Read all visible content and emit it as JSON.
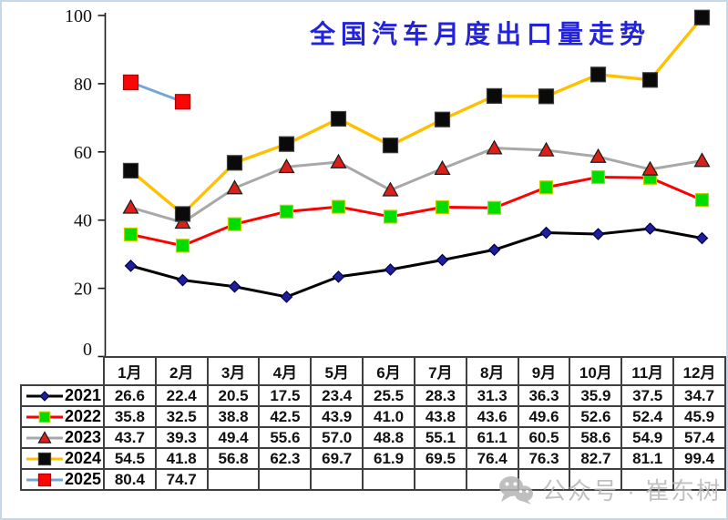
{
  "frame": {
    "border_color": "#c7d7ea",
    "background": "#ffffff"
  },
  "title": {
    "text": "全国汽车月度出口量走势",
    "color": "#2323dc"
  },
  "watermark": {
    "icon": "wechat-icon",
    "text": "公众号 · 崔东树",
    "color": "#b6b6b6"
  },
  "y_axis": {
    "ticks": [
      0,
      20,
      40,
      60,
      80,
      100
    ],
    "color": "#1a1a1a"
  },
  "chart_data": {
    "type": "line",
    "title": "全国汽车月度出口量走势",
    "xlabel": "",
    "ylabel": "",
    "categories": [
      "1月",
      "2月",
      "3月",
      "4月",
      "5月",
      "6月",
      "7月",
      "8月",
      "9月",
      "10月",
      "11月",
      "12月"
    ],
    "ylim": [
      0,
      100
    ],
    "yticks": [
      0,
      20,
      40,
      60,
      80,
      100
    ],
    "grid": false,
    "legend_position": "table-first-column",
    "series": [
      {
        "name": "2021",
        "marker": "diamond",
        "line_color": "#000000",
        "marker_color": "#1f1f99",
        "marker_edge": "#00004d",
        "marker_size": 6,
        "line_width": 3,
        "values": [
          26.6,
          22.4,
          20.5,
          17.5,
          23.4,
          25.5,
          28.3,
          31.3,
          36.3,
          35.9,
          37.5,
          34.7
        ]
      },
      {
        "name": "2022",
        "marker": "square",
        "line_color": "#fe0000",
        "marker_color": "#00dc00",
        "marker_edge": "#bccf00",
        "marker_size": 7,
        "line_width": 3,
        "values": [
          35.8,
          32.5,
          38.8,
          42.5,
          43.9,
          41.0,
          43.8,
          43.6,
          49.6,
          52.6,
          52.4,
          45.9
        ]
      },
      {
        "name": "2023",
        "marker": "triangle",
        "line_color": "#a8a8a8",
        "marker_color": "#db201a",
        "marker_edge": "#1a1a1a",
        "marker_size": 8,
        "line_width": 3,
        "values": [
          43.7,
          39.3,
          49.4,
          55.6,
          57.0,
          48.8,
          55.1,
          61.1,
          60.5,
          58.6,
          54.9,
          57.4
        ]
      },
      {
        "name": "2024",
        "marker": "square",
        "line_color": "#ffc000",
        "marker_color": "#0a0a0a",
        "marker_edge": "#3c3c3c",
        "marker_size": 8,
        "line_width": 3.4,
        "values": [
          54.5,
          41.8,
          56.8,
          62.3,
          69.7,
          61.9,
          69.5,
          76.4,
          76.3,
          82.7,
          81.1,
          99.4
        ]
      },
      {
        "name": "2025",
        "marker": "square",
        "line_color": "#74a6d8",
        "marker_color": "#fb0507",
        "marker_edge": "#b00000",
        "marker_size": 8,
        "line_width": 3,
        "values": [
          80.4,
          74.7,
          null,
          null,
          null,
          null,
          null,
          null,
          null,
          null,
          null,
          null
        ]
      }
    ]
  }
}
